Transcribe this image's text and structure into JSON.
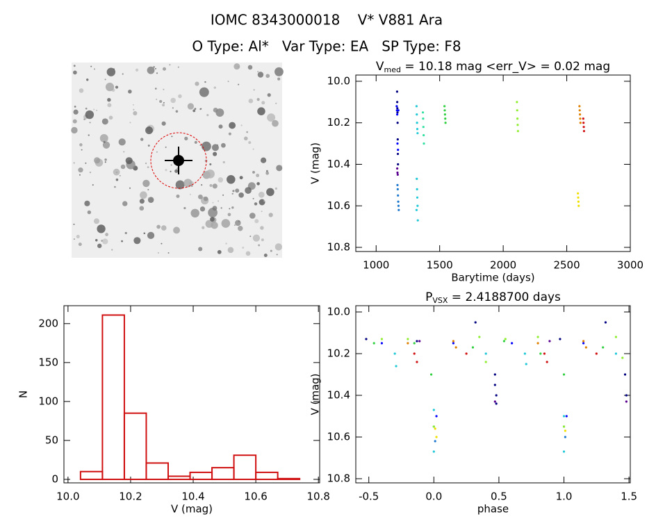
{
  "header": {
    "title": "IOMC 8343000018    V* V881 Ara",
    "subtitle": "O Type: Al*   Var Type: EA   SP Type: F8"
  },
  "chart_data": [
    {
      "type": "scatter",
      "title": {
        "main": "V",
        "sub": "med",
        "rest": " = 10.18 mag <err_V> = 0.02 mag"
      },
      "xlabel": "Barytime (days)",
      "ylabel": "V (mag)",
      "xlim": [
        840,
        3000
      ],
      "xticks": [
        1000,
        1500,
        2000,
        2500,
        3000
      ],
      "ylim": [
        10.82,
        9.97
      ],
      "yticks": [
        {
          "value": 10.0,
          "label": "10.0"
        },
        {
          "value": 10.2,
          "label": "10.2"
        },
        {
          "value": 10.4,
          "label": "10.4"
        },
        {
          "value": 10.6,
          "label": "10.6"
        },
        {
          "value": 10.8,
          "label": "10.8"
        }
      ],
      "series": [
        {
          "color": "#000080",
          "x": [
            1165,
            1166,
            1167,
            1168,
            1169,
            1170,
            1171,
            1172
          ],
          "values": [
            10.05,
            10.1,
            10.13,
            10.15,
            10.2,
            10.28,
            10.35,
            10.4
          ]
        },
        {
          "color": "#5a0090",
          "x": [
            1166,
            1168,
            1170
          ],
          "values": [
            10.42,
            10.44,
            10.45
          ]
        },
        {
          "color": "#0000ff",
          "x": [
            1162,
            1164,
            1166,
            1168,
            1172,
            1175
          ],
          "values": [
            10.12,
            10.14,
            10.16,
            10.3,
            10.33,
            10.14
          ]
        },
        {
          "color": "#1e78d0",
          "x": [
            1168,
            1170,
            1172,
            1174,
            1176,
            1178
          ],
          "values": [
            10.5,
            10.52,
            10.55,
            10.58,
            10.6,
            10.62
          ]
        },
        {
          "color": "#20c8d8",
          "x": [
            1318,
            1320,
            1322,
            1324,
            1326,
            1320,
            1322,
            1324,
            1326,
            1328,
            1318
          ],
          "values": [
            10.12,
            10.16,
            10.2,
            10.23,
            10.25,
            10.47,
            10.52,
            10.56,
            10.6,
            10.67,
            10.62
          ]
        },
        {
          "color": "#30e0a0",
          "x": [
            1368,
            1370,
            1372,
            1374,
            1376
          ],
          "values": [
            10.15,
            10.18,
            10.22,
            10.26,
            10.3
          ]
        },
        {
          "color": "#30d040",
          "x": [
            1538,
            1540,
            1542,
            1544,
            1546
          ],
          "values": [
            10.12,
            10.14,
            10.16,
            10.18,
            10.2
          ]
        },
        {
          "color": "#90ee30",
          "x": [
            2108,
            2110,
            2112,
            2114,
            2116
          ],
          "values": [
            10.1,
            10.14,
            10.18,
            10.21,
            10.24
          ]
        },
        {
          "color": "#f0e000",
          "x": [
            2588,
            2590,
            2592,
            2594
          ],
          "values": [
            10.54,
            10.56,
            10.58,
            10.6
          ]
        },
        {
          "color": "#e08000",
          "x": [
            2600,
            2602,
            2604,
            2606,
            2608
          ],
          "values": [
            10.12,
            10.14,
            10.16,
            10.18,
            10.2
          ]
        },
        {
          "color": "#d01010",
          "x": [
            2630,
            2632,
            2634,
            2636
          ],
          "values": [
            10.18,
            10.2,
            10.22,
            10.24
          ]
        }
      ]
    },
    {
      "type": "histogram",
      "xlabel": "V (mag)",
      "ylabel": "N",
      "xlim": [
        9.987,
        10.804
      ],
      "xticks": [
        {
          "value": 10.0,
          "label": "10.0"
        },
        {
          "value": 10.2,
          "label": "10.2"
        },
        {
          "value": 10.4,
          "label": "10.4"
        },
        {
          "value": 10.6,
          "label": "10.6"
        },
        {
          "value": 10.8,
          "label": "10.8"
        }
      ],
      "ylim": [
        -4.5,
        223
      ],
      "yticks": [
        0,
        50,
        100,
        150,
        200
      ],
      "color": "#d01010",
      "bins": [
        10.04,
        10.11,
        10.18,
        10.25,
        10.32,
        10.39,
        10.46,
        10.53,
        10.6,
        10.67,
        10.74
      ],
      "values": [
        10,
        211,
        85,
        21,
        4,
        9,
        15,
        31,
        9,
        1
      ]
    },
    {
      "type": "scatter",
      "title": {
        "main": "P",
        "sub": "VSX",
        "rest": " = 2.4188700 days"
      },
      "xlabel": "phase",
      "ylabel": "V (mag)",
      "xlim": [
        -0.6,
        1.51
      ],
      "xticks": [
        {
          "value": -0.5,
          "label": "-0.5"
        },
        {
          "value": 0.0,
          "label": "0.0"
        },
        {
          "value": 0.5,
          "label": "0.5"
        },
        {
          "value": 1.0,
          "label": "1.0"
        },
        {
          "value": 1.5,
          "label": "1.5"
        }
      ],
      "ylim": [
        10.82,
        9.97
      ],
      "yticks": [
        {
          "value": 10.0,
          "label": "10.0"
        },
        {
          "value": 10.2,
          "label": "10.2"
        },
        {
          "value": 10.4,
          "label": "10.4"
        },
        {
          "value": 10.6,
          "label": "10.6"
        },
        {
          "value": 10.8,
          "label": "10.8"
        }
      ],
      "series": [
        {
          "color": "#000080",
          "x": [
            -0.52,
            -0.13,
            0.32,
            0.47,
            0.47,
            0.48,
            0.48,
            0.97,
            1.32,
            1.47,
            1.48
          ],
          "values": [
            10.13,
            10.14,
            10.05,
            10.3,
            10.35,
            10.4,
            10.44,
            10.13,
            10.05,
            10.3,
            10.4
          ]
        },
        {
          "color": "#5a0090",
          "x": [
            -0.11,
            0.47,
            0.89,
            1.48
          ],
          "values": [
            10.14,
            10.43,
            10.14,
            10.43
          ]
        },
        {
          "color": "#0000ff",
          "x": [
            -0.4,
            0.02,
            0.15,
            0.6,
            1.02,
            1.15
          ],
          "values": [
            10.15,
            10.5,
            10.15,
            10.15,
            10.5,
            10.15
          ]
        },
        {
          "color": "#1e78d0",
          "x": [
            0.0,
            0.01,
            1.0,
            1.01
          ],
          "values": [
            10.55,
            10.62,
            10.55,
            10.6
          ]
        },
        {
          "color": "#20c8d8",
          "x": [
            -0.3,
            -0.29,
            0.0,
            0.0,
            0.4,
            0.7,
            0.71,
            1.0,
            1.0,
            1.4
          ],
          "values": [
            10.2,
            10.26,
            10.47,
            10.67,
            10.2,
            10.2,
            10.25,
            10.5,
            10.67,
            10.2
          ]
        },
        {
          "color": "#30d040",
          "x": [
            -0.46,
            -0.15,
            -0.02,
            0.3,
            0.54,
            0.82,
            1.0,
            1.3
          ],
          "values": [
            10.15,
            10.15,
            10.3,
            10.17,
            10.14,
            10.2,
            10.3,
            10.17
          ]
        },
        {
          "color": "#90ee30",
          "x": [
            -0.4,
            -0.2,
            0.0,
            0.35,
            0.4,
            0.55,
            0.8,
            1.0,
            1.4,
            1.45
          ],
          "values": [
            10.13,
            10.13,
            10.55,
            10.12,
            10.24,
            10.13,
            10.12,
            10.55,
            10.12,
            10.22
          ]
        },
        {
          "color": "#f0e000",
          "x": [
            0.01,
            0.02,
            1.01
          ],
          "values": [
            10.56,
            10.6,
            10.57
          ]
        },
        {
          "color": "#e08000",
          "x": [
            -0.2,
            0.15,
            0.17,
            0.8,
            1.15,
            1.17
          ],
          "values": [
            10.15,
            10.14,
            10.17,
            10.15,
            10.14,
            10.17
          ]
        },
        {
          "color": "#d01010",
          "x": [
            -0.15,
            -0.13,
            0.25,
            0.85,
            0.87,
            1.25
          ],
          "values": [
            10.2,
            10.24,
            10.2,
            10.2,
            10.24,
            10.2
          ]
        }
      ]
    }
  ]
}
